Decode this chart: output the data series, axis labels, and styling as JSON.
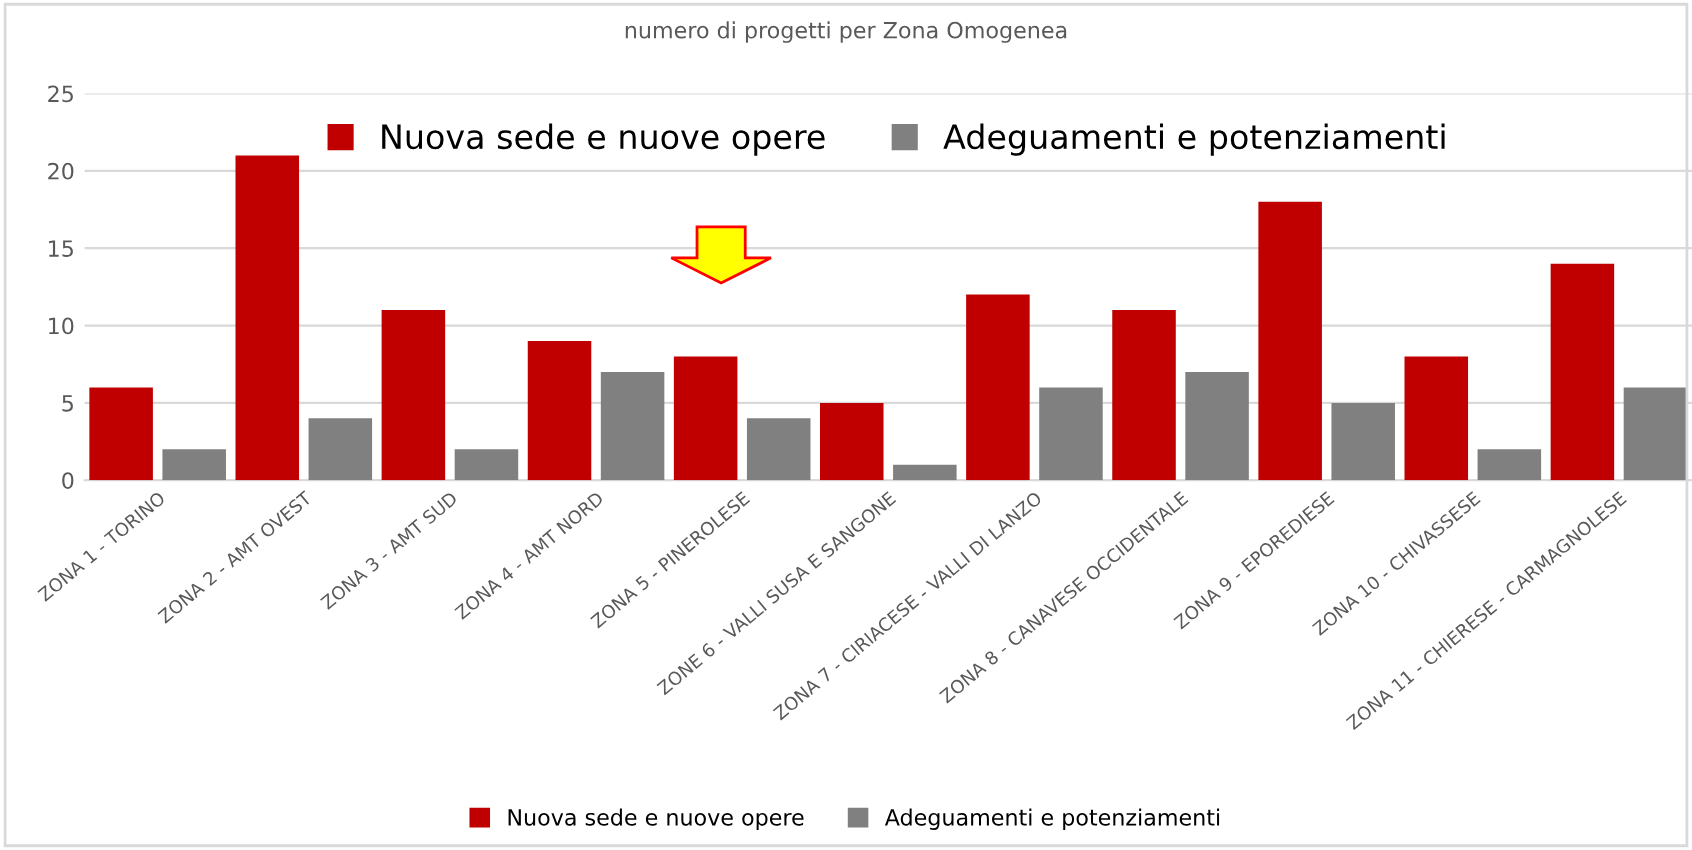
{
  "chart_data": {
    "type": "bar",
    "title": "numero di progetti per Zona Omogenea",
    "categories": [
      "ZONA 1 - TORINO",
      "ZONA 2 - AMT OVEST",
      "ZONA 3 - AMT SUD",
      "ZONA 4 - AMT NORD",
      "ZONA 5 - PINEROLESE",
      "ZONE 6 - VALLI SUSA E SANGONE",
      "ZONA 7 - CIRIACESE - VALLI DI LANZO",
      "ZONA 8 - CANAVESE OCCIDENTALE",
      "ZONA 9 - EPOREDIESE",
      "ZONA 10 - CHIVASSESE",
      "ZONA 11 - CHIERESE - CARMAGNOLESE"
    ],
    "series": [
      {
        "name": "Nuova sede e nuove opere",
        "color": "#c00000",
        "values": [
          6,
          21,
          11,
          9,
          8,
          5,
          12,
          11,
          18,
          8,
          14
        ]
      },
      {
        "name": "Adeguamenti e potenziamenti",
        "color": "#808080",
        "values": [
          2,
          4,
          2,
          7,
          4,
          1,
          6,
          7,
          5,
          2,
          6
        ]
      }
    ],
    "ylim": [
      0,
      25
    ],
    "yticks": [
      0,
      5,
      10,
      15,
      20,
      25
    ],
    "grid": "y",
    "legend": "top"
  }
}
